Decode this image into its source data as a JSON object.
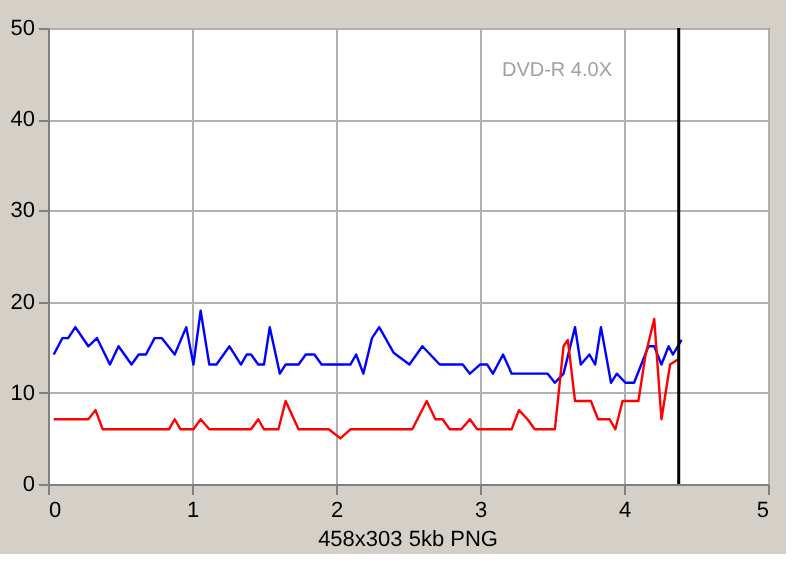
{
  "chart_data": {
    "type": "line",
    "annotations": [
      "DVD-R 4.0X",
      "458x303 5kb PNG"
    ],
    "series": [
      {
        "color": "#0000ff",
        "x": [
          0.04,
          0.1,
          0.14,
          0.19,
          0.28,
          0.34,
          0.43,
          0.49,
          0.58,
          0.63,
          0.68,
          0.74,
          0.79,
          0.88,
          0.96,
          1.01,
          1.06,
          1.12,
          1.17,
          1.26,
          1.34,
          1.38,
          1.41,
          1.46,
          1.5,
          1.54,
          1.61,
          1.65,
          1.74,
          1.79,
          1.85,
          1.9,
          2.1,
          2.14,
          2.19,
          2.25,
          2.3,
          2.4,
          2.51,
          2.6,
          2.72,
          2.88,
          2.93,
          3.0,
          3.05,
          3.09,
          3.16,
          3.22,
          3.47,
          3.52,
          3.58,
          3.66,
          3.7,
          3.76,
          3.8,
          3.84,
          3.91,
          3.95,
          4.01,
          4.07,
          4.12,
          4.17,
          4.21,
          4.26,
          4.31,
          4.34,
          4.4
        ],
        "values": [
          14.2,
          16,
          16,
          17.2,
          15.1,
          16,
          13.1,
          15.1,
          13.1,
          14.2,
          14.2,
          16,
          16,
          14.2,
          17.2,
          13.1,
          19,
          13.1,
          13.1,
          15.1,
          13.1,
          14.2,
          14.2,
          13.1,
          13.1,
          17.2,
          12.1,
          13.1,
          13.1,
          14.2,
          14.2,
          13.1,
          13.1,
          14.2,
          12.1,
          16,
          17.2,
          14.4,
          13.1,
          15.1,
          13.1,
          13.1,
          12.1,
          13.1,
          13.1,
          12.1,
          14.2,
          12.1,
          12.1,
          11.1,
          12.1,
          17.2,
          13.1,
          14.2,
          13.1,
          17.2,
          11.1,
          12.1,
          11.1,
          11.1,
          13.1,
          15.1,
          15.1,
          13.1,
          15.1,
          14.2,
          15.8
        ]
      },
      {
        "color": "#ff0000",
        "x": [
          0.04,
          0.28,
          0.33,
          0.38,
          0.84,
          0.88,
          0.92,
          1.01,
          1.06,
          1.12,
          1.41,
          1.46,
          1.5,
          1.6,
          1.65,
          1.74,
          1.95,
          2.03,
          2.1,
          2.19,
          2.53,
          2.63,
          2.69,
          2.74,
          2.79,
          2.87,
          2.93,
          2.98,
          3.22,
          3.27,
          3.33,
          3.38,
          3.52,
          3.58,
          3.61,
          3.66,
          3.77,
          3.82,
          3.9,
          3.94,
          3.99,
          4.1,
          4.15,
          4.21,
          4.26,
          4.32,
          4.38
        ],
        "values": [
          7.1,
          7.1,
          8.1,
          6,
          6,
          7.1,
          6,
          6,
          7.1,
          6,
          6,
          7.1,
          6,
          6,
          9.1,
          6,
          6,
          5,
          6,
          6,
          6,
          9.1,
          7.1,
          7.1,
          6,
          6,
          7.1,
          6,
          6,
          8.1,
          7.1,
          6,
          6,
          15.1,
          15.8,
          9.1,
          9.1,
          7.1,
          7.1,
          6,
          9.1,
          9.1,
          14.2,
          18.1,
          7.1,
          13.1,
          13.7
        ]
      }
    ],
    "ref_lines": [
      {
        "axis": "x",
        "value": 4.38,
        "color": "#000000"
      }
    ],
    "xlim": [
      0,
      5
    ],
    "xticks": [
      0,
      1,
      2,
      3,
      4,
      5
    ],
    "ylim": [
      0,
      50
    ],
    "yticks": [
      0,
      10,
      20,
      30,
      40,
      50
    ],
    "grid": true,
    "marker": "none",
    "line_style": "solid"
  }
}
